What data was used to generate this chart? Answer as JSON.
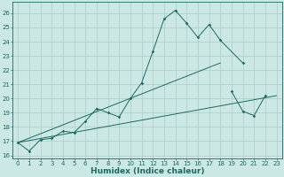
{
  "title": "",
  "xlabel": "Humidex (Indice chaleur)",
  "background_color": "#cce8e5",
  "grid_color": "#aaccca",
  "line_color": "#1a6b5e",
  "x_all": [
    0,
    1,
    2,
    3,
    4,
    5,
    6,
    7,
    8,
    9,
    10,
    11,
    12,
    13,
    14,
    15,
    16,
    17,
    18,
    19,
    20,
    21,
    22,
    23
  ],
  "line1_y": [
    16.9,
    16.3,
    17.1,
    17.2,
    17.7,
    17.6,
    18.4,
    19.3,
    19.0,
    18.7,
    20.0,
    21.1,
    23.3,
    25.6,
    26.2,
    25.3,
    24.3,
    25.2,
    24.1,
    null,
    22.5,
    null,
    null,
    null
  ],
  "line2_y": [
    null,
    null,
    null,
    null,
    null,
    null,
    null,
    null,
    null,
    null,
    null,
    null,
    null,
    null,
    null,
    null,
    null,
    null,
    null,
    20.5,
    19.1,
    18.8,
    20.2,
    null
  ],
  "trend1_x": [
    0,
    18
  ],
  "trend1_y": [
    16.9,
    22.5
  ],
  "trend2_x": [
    0,
    23
  ],
  "trend2_y": [
    16.9,
    20.2
  ],
  "xlim": [
    -0.5,
    23.5
  ],
  "ylim": [
    15.8,
    26.8
  ],
  "xticks": [
    0,
    1,
    2,
    3,
    4,
    5,
    6,
    7,
    8,
    9,
    10,
    11,
    12,
    13,
    14,
    15,
    16,
    17,
    18,
    19,
    20,
    21,
    22,
    23
  ],
  "yticks": [
    16,
    17,
    18,
    19,
    20,
    21,
    22,
    23,
    24,
    25,
    26
  ],
  "xlabel_fontsize": 6.5,
  "tick_fontsize": 5.0
}
